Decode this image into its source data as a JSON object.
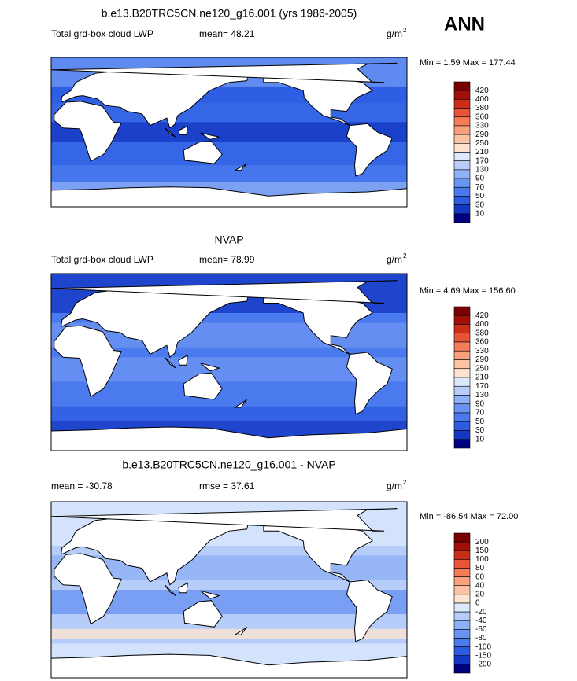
{
  "season": "ANN",
  "panels": [
    {
      "title": "b.e13.B20TRC5CN.ne120_g16.001 (yrs 1986-2005)",
      "label": "Total grd-box cloud LWP",
      "mean": "mean=  48.21",
      "units": "g/m",
      "units_exp": "2",
      "minmax": "Min =   1.59 Max = 177.44",
      "colorbar": [
        420,
        400,
        380,
        360,
        330,
        290,
        250,
        210,
        170,
        130,
        90,
        70,
        50,
        30,
        10
      ]
    },
    {
      "title": "NVAP",
      "label": "Total grd-box cloud LWP",
      "mean": "mean=  78.99",
      "units": "g/m",
      "units_exp": "2",
      "minmax": "Min =   4.69 Max = 156.60",
      "colorbar": [
        420,
        400,
        380,
        360,
        330,
        290,
        250,
        210,
        170,
        130,
        90,
        70,
        50,
        30,
        10
      ]
    },
    {
      "title": "b.e13.B20TRC5CN.ne120_g16.001 - NVAP",
      "label": "mean = -30.78",
      "mean": "rmse =  37.61",
      "units": "g/m",
      "units_exp": "2",
      "minmax": "Min = -86.54 Max =  72.00",
      "colorbar": [
        200,
        150,
        100,
        80,
        60,
        40,
        20,
        0,
        -20,
        -40,
        -60,
        -80,
        -100,
        -150,
        -200
      ]
    }
  ]
}
